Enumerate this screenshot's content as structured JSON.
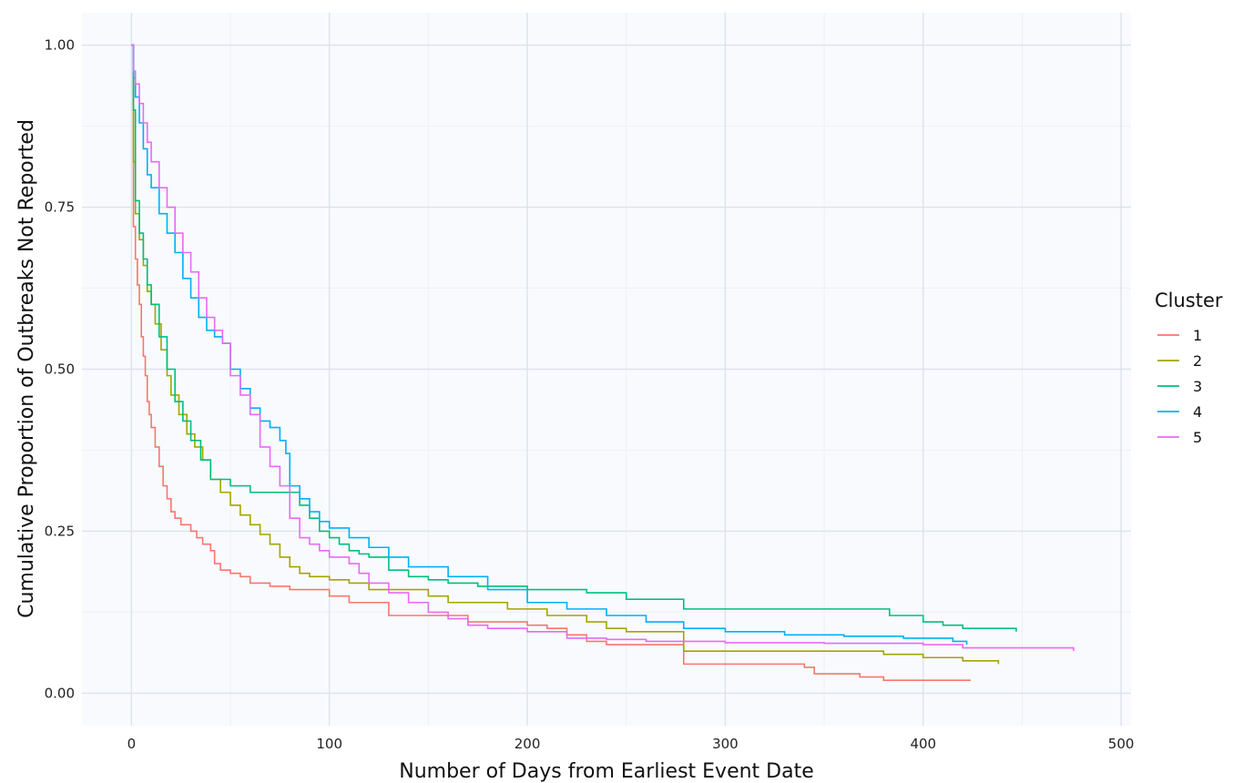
{
  "chart_data": {
    "type": "line",
    "xlabel": "Number of Days from Earliest Event Date",
    "ylabel": "Cumulative Proportion of Outbreaks Not Reported",
    "xlim": [
      -25,
      505
    ],
    "ylim": [
      -0.05,
      1.05
    ],
    "xticks": [
      0,
      100,
      200,
      300,
      400,
      500
    ],
    "xtick_labels": [
      "0",
      "100",
      "200",
      "300",
      "400",
      "500"
    ],
    "yticks": [
      0.0,
      0.25,
      0.5,
      0.75,
      1.0
    ],
    "ytick_labels": [
      "0.00",
      "0.25",
      "0.50",
      "0.75",
      "1.00"
    ],
    "grid": true,
    "step": true,
    "legend": {
      "title": "Cluster",
      "position": "right"
    },
    "series": [
      {
        "name": "1",
        "color": "#F8766D",
        "x": [
          0,
          1,
          2,
          3,
          4,
          5,
          6,
          7,
          8,
          9,
          10,
          12,
          14,
          16,
          18,
          20,
          22,
          25,
          30,
          33,
          36,
          40,
          42,
          45,
          50,
          55,
          60,
          70,
          80,
          100,
          110,
          130,
          150,
          170,
          180,
          200,
          210,
          220,
          230,
          240,
          260,
          279,
          300,
          340,
          345,
          368,
          380,
          424
        ],
        "y": [
          1.0,
          0.72,
          0.67,
          0.63,
          0.6,
          0.55,
          0.52,
          0.49,
          0.45,
          0.43,
          0.41,
          0.38,
          0.35,
          0.32,
          0.3,
          0.28,
          0.27,
          0.26,
          0.25,
          0.24,
          0.23,
          0.22,
          0.2,
          0.19,
          0.185,
          0.18,
          0.17,
          0.165,
          0.16,
          0.15,
          0.14,
          0.12,
          0.12,
          0.11,
          0.11,
          0.105,
          0.1,
          0.09,
          0.08,
          0.075,
          0.075,
          0.045,
          0.045,
          0.04,
          0.03,
          0.025,
          0.02,
          0.02
        ]
      },
      {
        "name": "2",
        "color": "#A3A500",
        "x": [
          0,
          1,
          2,
          4,
          6,
          8,
          10,
          12,
          15,
          18,
          20,
          24,
          28,
          32,
          36,
          40,
          45,
          50,
          55,
          60,
          65,
          70,
          75,
          80,
          85,
          90,
          100,
          110,
          120,
          150,
          160,
          170,
          190,
          210,
          230,
          240,
          250,
          279,
          380,
          400,
          420,
          438
        ],
        "y": [
          1.0,
          0.82,
          0.74,
          0.7,
          0.66,
          0.62,
          0.6,
          0.57,
          0.53,
          0.49,
          0.46,
          0.43,
          0.4,
          0.38,
          0.36,
          0.33,
          0.31,
          0.29,
          0.275,
          0.26,
          0.245,
          0.23,
          0.21,
          0.195,
          0.185,
          0.18,
          0.175,
          0.17,
          0.16,
          0.15,
          0.14,
          0.14,
          0.13,
          0.12,
          0.11,
          0.1,
          0.095,
          0.065,
          0.06,
          0.055,
          0.05,
          0.045
        ]
      },
      {
        "name": "3",
        "color": "#00BF7D",
        "x": [
          0,
          1,
          2,
          4,
          6,
          8,
          10,
          14,
          18,
          22,
          26,
          30,
          35,
          40,
          45,
          50,
          60,
          75,
          80,
          85,
          90,
          95,
          100,
          105,
          110,
          115,
          120,
          130,
          140,
          150,
          160,
          175,
          200,
          230,
          250,
          279,
          340,
          383,
          400,
          410,
          420,
          447
        ],
        "y": [
          1.0,
          0.9,
          0.76,
          0.71,
          0.67,
          0.63,
          0.6,
          0.55,
          0.5,
          0.45,
          0.42,
          0.39,
          0.36,
          0.33,
          0.33,
          0.32,
          0.31,
          0.31,
          0.31,
          0.29,
          0.27,
          0.25,
          0.24,
          0.23,
          0.22,
          0.215,
          0.21,
          0.19,
          0.18,
          0.175,
          0.17,
          0.165,
          0.16,
          0.155,
          0.145,
          0.13,
          0.13,
          0.12,
          0.11,
          0.105,
          0.1,
          0.095
        ]
      },
      {
        "name": "4",
        "color": "#00B0F6",
        "x": [
          0,
          1,
          2,
          4,
          6,
          8,
          10,
          14,
          18,
          22,
          26,
          30,
          34,
          38,
          42,
          46,
          50,
          55,
          60,
          65,
          70,
          75,
          78,
          80,
          85,
          90,
          95,
          100,
          110,
          120,
          130,
          140,
          160,
          180,
          200,
          220,
          240,
          260,
          279,
          300,
          330,
          360,
          390,
          415,
          422
        ],
        "y": [
          1.0,
          0.95,
          0.92,
          0.88,
          0.84,
          0.8,
          0.78,
          0.74,
          0.71,
          0.68,
          0.64,
          0.61,
          0.58,
          0.56,
          0.55,
          0.54,
          0.5,
          0.47,
          0.44,
          0.42,
          0.41,
          0.39,
          0.37,
          0.32,
          0.3,
          0.28,
          0.265,
          0.255,
          0.24,
          0.225,
          0.21,
          0.195,
          0.18,
          0.16,
          0.14,
          0.13,
          0.12,
          0.11,
          0.1,
          0.095,
          0.09,
          0.088,
          0.085,
          0.08,
          0.075
        ]
      },
      {
        "name": "5",
        "color": "#E76BF3",
        "x": [
          0,
          1,
          2,
          4,
          6,
          8,
          10,
          14,
          18,
          22,
          26,
          30,
          34,
          38,
          42,
          46,
          50,
          55,
          60,
          65,
          70,
          75,
          80,
          85,
          90,
          95,
          100,
          110,
          115,
          120,
          130,
          140,
          150,
          160,
          170,
          180,
          200,
          220,
          240,
          260,
          300,
          350,
          400,
          420,
          476
        ],
        "y": [
          1.0,
          0.96,
          0.94,
          0.91,
          0.88,
          0.85,
          0.82,
          0.78,
          0.75,
          0.71,
          0.68,
          0.65,
          0.61,
          0.58,
          0.56,
          0.54,
          0.49,
          0.46,
          0.43,
          0.38,
          0.35,
          0.32,
          0.27,
          0.24,
          0.23,
          0.22,
          0.21,
          0.2,
          0.185,
          0.17,
          0.155,
          0.14,
          0.125,
          0.115,
          0.105,
          0.1,
          0.095,
          0.085,
          0.083,
          0.08,
          0.078,
          0.077,
          0.075,
          0.07,
          0.065
        ]
      }
    ]
  }
}
